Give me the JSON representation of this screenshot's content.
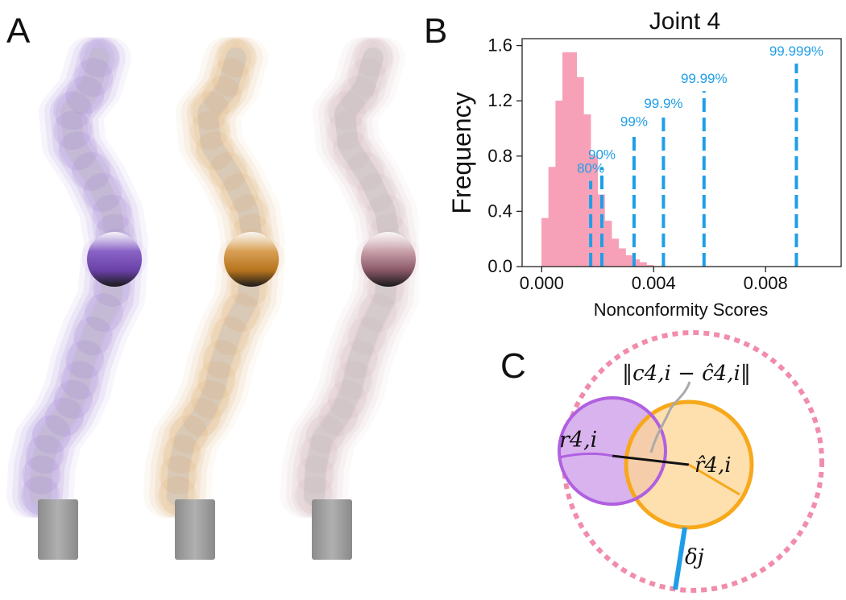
{
  "panels": {
    "a": "A",
    "b": "B",
    "c": "C"
  },
  "arms": [
    {
      "color": "#8a63c6",
      "joint": "#6a42a8"
    },
    {
      "color": "#d8a055",
      "joint": "#b8741e"
    },
    {
      "color": "#c9a1ab",
      "joint": "#8a5868"
    }
  ],
  "chart_data": {
    "type": "bar",
    "title": "Joint 4",
    "xlabel": "Nonconformity Scores",
    "ylabel": "Frequency",
    "xlim": [
      -0.0007,
      0.0107
    ],
    "ylim": [
      0,
      1.65
    ],
    "xticks": [
      0.0,
      0.004,
      0.008
    ],
    "xtick_labels": [
      "0.000",
      "0.004",
      "0.008"
    ],
    "yticks": [
      0.0,
      0.4,
      0.8,
      1.2,
      1.6
    ],
    "ytick_labels": [
      "0.0",
      "0.4",
      "0.8",
      "1.2",
      "1.6"
    ],
    "bin_width": 0.00025,
    "bin_starts": [
      0,
      0.00025,
      0.0005,
      0.00075,
      0.001,
      0.00125,
      0.0015,
      0.00175,
      0.002,
      0.00225,
      0.0025,
      0.00275,
      0.003,
      0.00325,
      0.0035,
      0.00375
    ],
    "histogram_values": [
      0.35,
      0.72,
      1.2,
      1.55,
      1.55,
      1.37,
      1.1,
      0.8,
      0.52,
      0.33,
      0.2,
      0.13,
      0.08,
      0.05,
      0.03,
      0.01
    ],
    "bar_color": "#f7a1b8",
    "quantile_color": "#1f9ee8",
    "quantiles": [
      {
        "label": "80%",
        "x": 0.00175,
        "height": 0.62
      },
      {
        "label": "90%",
        "x": 0.00215,
        "height": 0.72
      },
      {
        "label": "99%",
        "x": 0.0033,
        "height": 0.96
      },
      {
        "label": "99.9%",
        "x": 0.00435,
        "height": 1.09
      },
      {
        "label": "99.99%",
        "x": 0.0058,
        "height": 1.27
      },
      {
        "label": "99.999%",
        "x": 0.0091,
        "height": 1.47
      }
    ]
  },
  "diagram_c": {
    "dist_label": "‖c4,i − ĉ4,i‖",
    "r_label": "r4,i",
    "rhat_label": "r̂4,i",
    "delta_label": "δj",
    "purple": "#b060e0",
    "orange": "#f7a81b",
    "pink": "#f28cab",
    "blue": "#1f9ee8"
  }
}
